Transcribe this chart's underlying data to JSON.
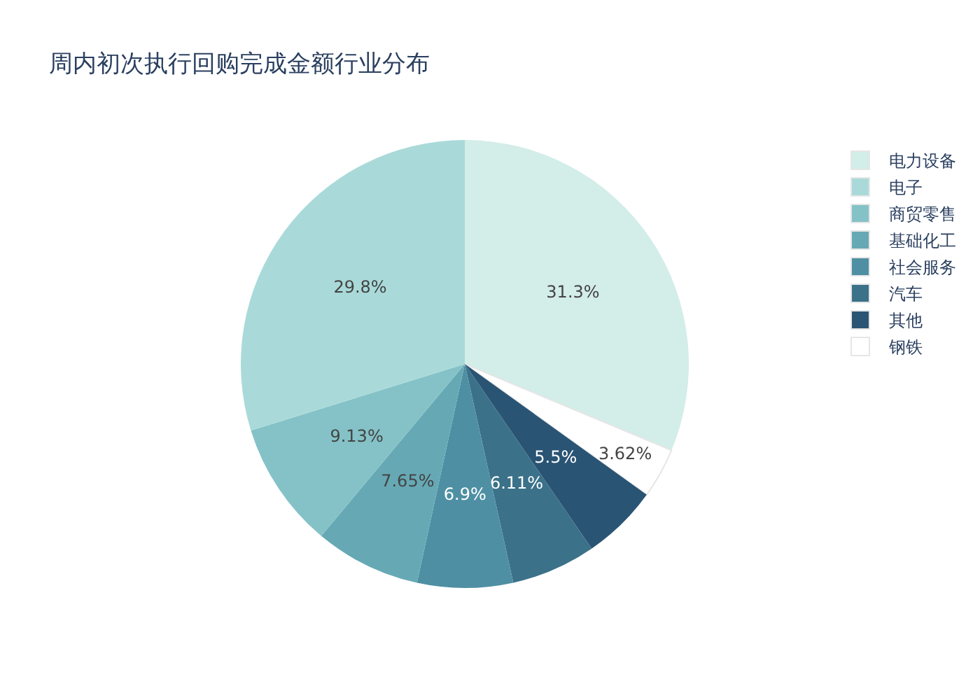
{
  "chart_data": {
    "type": "pie",
    "title": "周内初次执行回购完成金额行业分布",
    "categories": [
      "电力设备",
      "电子",
      "商贸零售",
      "基础化工",
      "社会服务",
      "汽车",
      "其他",
      "钢铁"
    ],
    "values": [
      31.3,
      29.8,
      9.13,
      7.65,
      6.9,
      6.11,
      5.5,
      3.62
    ],
    "colors": [
      "#d3ede9",
      "#a9dad9",
      "#84c2c7",
      "#66a9b5",
      "#4e8fa3",
      "#3b7189",
      "#2a5474",
      "#ffffff"
    ],
    "value_labels": [
      "31.3%",
      "29.8%",
      "9.13%",
      "7.65%",
      "6.9%",
      "6.11%",
      "5.5%",
      "3.62%"
    ],
    "legend": "right"
  }
}
